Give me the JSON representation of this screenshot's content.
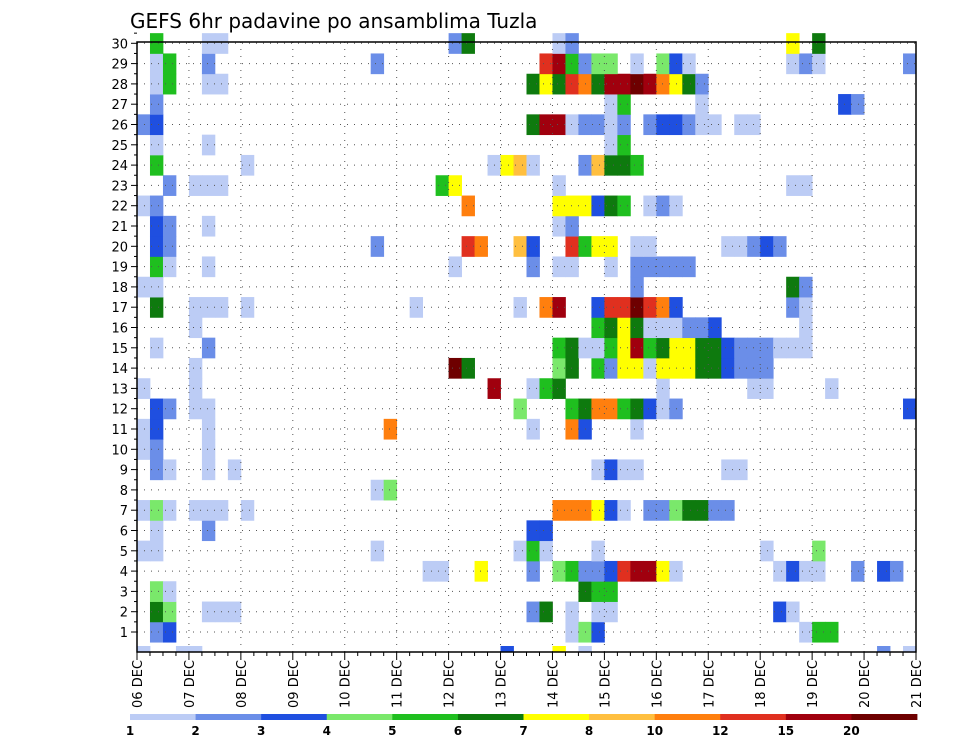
{
  "chart_data": {
    "type": "heatmap",
    "title": "GEFS 6hr padavine po ansamblima Tuzla",
    "xlabel": "",
    "ylabel": "",
    "x_tick_labels": [
      "06 DEC",
      "07 DEC",
      "08 DEC",
      "09 DEC",
      "10 DEC",
      "11 DEC",
      "12 DEC",
      "13 DEC",
      "14 DEC",
      "15 DEC",
      "16 DEC",
      "17 DEC",
      "18 DEC",
      "19 DEC",
      "20 DEC",
      "21 DEC"
    ],
    "y_tick_labels": [
      "1",
      "2",
      "3",
      "4",
      "5",
      "6",
      "7",
      "8",
      "9",
      "10",
      "11",
      "12",
      "13",
      "14",
      "15",
      "16",
      "17",
      "18",
      "19",
      "20",
      "21",
      "22",
      "23",
      "24",
      "25",
      "26",
      "27",
      "28",
      "29",
      "30"
    ],
    "x_range_steps": [
      0,
      60
    ],
    "step_hours": 6,
    "members": [
      1,
      30
    ],
    "grid": "dotted",
    "colorbar": {
      "labels": [
        "1",
        "2",
        "3",
        "4",
        "5",
        "6",
        "7",
        "8",
        "10",
        "12",
        "15",
        "20"
      ],
      "colors": [
        "#bcccf5",
        "#6b8ee8",
        "#1f4fe0",
        "#7ae86b",
        "#1fbf1f",
        "#0e7a0e",
        "#ffff00",
        "#ffbf3f",
        "#ff7f0e",
        "#e0301f",
        "#a0000e",
        "#6e0000"
      ]
    },
    "cells": [
      [
        1,
        1,
        1
      ],
      [
        1,
        2,
        2
      ],
      [
        1,
        33,
        0
      ],
      [
        1,
        34,
        3
      ],
      [
        1,
        35,
        2
      ],
      [
        1,
        51,
        0
      ],
      [
        1,
        52,
        4
      ],
      [
        1,
        53,
        4
      ],
      [
        2,
        1,
        5
      ],
      [
        2,
        2,
        3
      ],
      [
        2,
        5,
        0
      ],
      [
        2,
        6,
        0
      ],
      [
        2,
        7,
        0
      ],
      [
        2,
        30,
        1
      ],
      [
        2,
        31,
        5
      ],
      [
        2,
        33,
        0
      ],
      [
        2,
        35,
        0
      ],
      [
        2,
        36,
        0
      ],
      [
        2,
        49,
        2
      ],
      [
        2,
        50,
        0
      ],
      [
        3,
        1,
        3
      ],
      [
        3,
        2,
        0
      ],
      [
        3,
        34,
        5
      ],
      [
        3,
        35,
        4
      ],
      [
        3,
        36,
        4
      ],
      [
        4,
        22,
        0
      ],
      [
        4,
        23,
        0
      ],
      [
        4,
        26,
        6
      ],
      [
        4,
        30,
        1
      ],
      [
        4,
        32,
        3
      ],
      [
        4,
        33,
        4
      ],
      [
        4,
        34,
        1
      ],
      [
        4,
        35,
        1
      ],
      [
        4,
        36,
        2
      ],
      [
        4,
        37,
        9
      ],
      [
        4,
        38,
        10
      ],
      [
        4,
        39,
        10
      ],
      [
        4,
        40,
        6
      ],
      [
        4,
        41,
        0
      ],
      [
        4,
        49,
        0
      ],
      [
        4,
        50,
        2
      ],
      [
        4,
        51,
        0
      ],
      [
        4,
        52,
        0
      ],
      [
        4,
        55,
        1
      ],
      [
        4,
        57,
        2
      ],
      [
        4,
        58,
        1
      ],
      [
        5,
        0,
        0
      ],
      [
        5,
        1,
        0
      ],
      [
        5,
        18,
        0
      ],
      [
        5,
        29,
        0
      ],
      [
        5,
        30,
        4
      ],
      [
        5,
        31,
        0
      ],
      [
        5,
        35,
        0
      ],
      [
        5,
        48,
        0
      ],
      [
        5,
        52,
        3
      ],
      [
        6,
        1,
        0
      ],
      [
        6,
        5,
        1
      ],
      [
        6,
        30,
        2
      ],
      [
        6,
        31,
        2
      ],
      [
        7,
        0,
        0
      ],
      [
        7,
        1,
        3
      ],
      [
        7,
        2,
        0
      ],
      [
        7,
        4,
        0
      ],
      [
        7,
        5,
        0
      ],
      [
        7,
        6,
        0
      ],
      [
        7,
        8,
        0
      ],
      [
        7,
        32,
        8
      ],
      [
        7,
        33,
        8
      ],
      [
        7,
        34,
        8
      ],
      [
        7,
        35,
        6
      ],
      [
        7,
        36,
        2
      ],
      [
        7,
        37,
        0
      ],
      [
        7,
        39,
        1
      ],
      [
        7,
        40,
        1
      ],
      [
        7,
        41,
        3
      ],
      [
        7,
        42,
        5
      ],
      [
        7,
        43,
        5
      ],
      [
        7,
        44,
        1
      ],
      [
        7,
        45,
        1
      ],
      [
        8,
        18,
        0
      ],
      [
        8,
        19,
        3
      ],
      [
        9,
        1,
        1
      ],
      [
        9,
        2,
        0
      ],
      [
        9,
        5,
        0
      ],
      [
        9,
        7,
        0
      ],
      [
        9,
        35,
        0
      ],
      [
        9,
        36,
        2
      ],
      [
        9,
        37,
        0
      ],
      [
        9,
        38,
        0
      ],
      [
        9,
        45,
        0
      ],
      [
        9,
        46,
        0
      ],
      [
        10,
        0,
        0
      ],
      [
        10,
        1,
        1
      ],
      [
        10,
        5,
        0
      ],
      [
        11,
        0,
        0
      ],
      [
        11,
        1,
        2
      ],
      [
        11,
        5,
        0
      ],
      [
        11,
        19,
        8
      ],
      [
        11,
        30,
        0
      ],
      [
        11,
        33,
        8
      ],
      [
        11,
        34,
        2
      ],
      [
        11,
        38,
        0
      ],
      [
        12,
        1,
        2
      ],
      [
        12,
        2,
        1
      ],
      [
        12,
        4,
        0
      ],
      [
        12,
        5,
        0
      ],
      [
        12,
        29,
        3
      ],
      [
        12,
        33,
        4
      ],
      [
        12,
        34,
        5
      ],
      [
        12,
        35,
        8
      ],
      [
        12,
        36,
        8
      ],
      [
        12,
        37,
        4
      ],
      [
        12,
        38,
        5
      ],
      [
        12,
        39,
        2
      ],
      [
        12,
        40,
        0
      ],
      [
        12,
        41,
        1
      ],
      [
        12,
        59,
        2
      ],
      [
        13,
        0,
        0
      ],
      [
        13,
        4,
        0
      ],
      [
        13,
        27,
        10
      ],
      [
        13,
        30,
        0
      ],
      [
        13,
        31,
        4
      ],
      [
        13,
        32,
        5
      ],
      [
        13,
        40,
        0
      ],
      [
        13,
        47,
        0
      ],
      [
        13,
        48,
        0
      ],
      [
        13,
        53,
        0
      ],
      [
        14,
        4,
        0
      ],
      [
        14,
        24,
        11
      ],
      [
        14,
        25,
        5
      ],
      [
        14,
        32,
        3
      ],
      [
        14,
        33,
        5
      ],
      [
        14,
        35,
        4
      ],
      [
        14,
        36,
        1
      ],
      [
        14,
        37,
        6
      ],
      [
        14,
        38,
        6
      ],
      [
        14,
        39,
        0
      ],
      [
        14,
        40,
        6
      ],
      [
        14,
        41,
        6
      ],
      [
        14,
        42,
        6
      ],
      [
        14,
        43,
        5
      ],
      [
        14,
        44,
        5
      ],
      [
        14,
        45,
        2
      ],
      [
        14,
        46,
        1
      ],
      [
        14,
        47,
        1
      ],
      [
        14,
        48,
        1
      ],
      [
        15,
        1,
        0
      ],
      [
        15,
        5,
        1
      ],
      [
        15,
        32,
        4
      ],
      [
        15,
        33,
        5
      ],
      [
        15,
        34,
        0
      ],
      [
        15,
        35,
        0
      ],
      [
        15,
        36,
        4
      ],
      [
        15,
        37,
        6
      ],
      [
        15,
        38,
        10
      ],
      [
        15,
        39,
        4
      ],
      [
        15,
        40,
        5
      ],
      [
        15,
        41,
        6
      ],
      [
        15,
        42,
        6
      ],
      [
        15,
        43,
        5
      ],
      [
        15,
        44,
        5
      ],
      [
        15,
        45,
        2
      ],
      [
        15,
        46,
        1
      ],
      [
        15,
        47,
        1
      ],
      [
        15,
        48,
        1
      ],
      [
        15,
        49,
        0
      ],
      [
        15,
        50,
        0
      ],
      [
        15,
        51,
        0
      ],
      [
        16,
        4,
        0
      ],
      [
        16,
        35,
        4
      ],
      [
        16,
        36,
        5
      ],
      [
        16,
        37,
        6
      ],
      [
        16,
        38,
        5
      ],
      [
        16,
        39,
        0
      ],
      [
        16,
        40,
        0
      ],
      [
        16,
        41,
        0
      ],
      [
        16,
        42,
        1
      ],
      [
        16,
        43,
        1
      ],
      [
        16,
        44,
        2
      ],
      [
        16,
        51,
        0
      ],
      [
        17,
        1,
        5
      ],
      [
        17,
        4,
        0
      ],
      [
        17,
        5,
        0
      ],
      [
        17,
        6,
        0
      ],
      [
        17,
        8,
        0
      ],
      [
        17,
        21,
        0
      ],
      [
        17,
        29,
        0
      ],
      [
        17,
        31,
        8
      ],
      [
        17,
        32,
        10
      ],
      [
        17,
        35,
        2
      ],
      [
        17,
        36,
        9
      ],
      [
        17,
        37,
        9
      ],
      [
        17,
        38,
        11
      ],
      [
        17,
        39,
        9
      ],
      [
        17,
        40,
        8
      ],
      [
        17,
        41,
        2
      ],
      [
        17,
        50,
        1
      ],
      [
        17,
        51,
        0
      ],
      [
        18,
        0,
        0
      ],
      [
        18,
        1,
        0
      ],
      [
        18,
        38,
        1
      ],
      [
        18,
        50,
        5
      ],
      [
        18,
        51,
        1
      ],
      [
        19,
        1,
        4
      ],
      [
        19,
        2,
        0
      ],
      [
        19,
        5,
        0
      ],
      [
        19,
        24,
        0
      ],
      [
        19,
        30,
        1
      ],
      [
        19,
        32,
        0
      ],
      [
        19,
        33,
        0
      ],
      [
        19,
        36,
        0
      ],
      [
        19,
        38,
        1
      ],
      [
        19,
        39,
        1
      ],
      [
        19,
        40,
        1
      ],
      [
        19,
        41,
        1
      ],
      [
        19,
        42,
        1
      ],
      [
        20,
        1,
        2
      ],
      [
        20,
        2,
        1
      ],
      [
        20,
        18,
        1
      ],
      [
        20,
        25,
        9
      ],
      [
        20,
        26,
        8
      ],
      [
        20,
        29,
        7
      ],
      [
        20,
        30,
        2
      ],
      [
        20,
        33,
        9
      ],
      [
        20,
        34,
        4
      ],
      [
        20,
        35,
        6
      ],
      [
        20,
        36,
        6
      ],
      [
        20,
        38,
        0
      ],
      [
        20,
        39,
        0
      ],
      [
        20,
        45,
        0
      ],
      [
        20,
        46,
        0
      ],
      [
        20,
        47,
        1
      ],
      [
        20,
        48,
        2
      ],
      [
        20,
        49,
        1
      ],
      [
        21,
        1,
        2
      ],
      [
        21,
        2,
        1
      ],
      [
        21,
        5,
        0
      ],
      [
        21,
        32,
        0
      ],
      [
        21,
        33,
        1
      ],
      [
        22,
        0,
        0
      ],
      [
        22,
        1,
        1
      ],
      [
        22,
        25,
        8
      ],
      [
        22,
        32,
        6
      ],
      [
        22,
        33,
        6
      ],
      [
        22,
        34,
        6
      ],
      [
        22,
        35,
        2
      ],
      [
        22,
        36,
        5
      ],
      [
        22,
        37,
        4
      ],
      [
        22,
        39,
        0
      ],
      [
        22,
        40,
        1
      ],
      [
        22,
        41,
        0
      ],
      [
        23,
        2,
        1
      ],
      [
        23,
        4,
        0
      ],
      [
        23,
        5,
        0
      ],
      [
        23,
        6,
        0
      ],
      [
        23,
        23,
        4
      ],
      [
        23,
        24,
        6
      ],
      [
        23,
        32,
        0
      ],
      [
        23,
        50,
        0
      ],
      [
        23,
        51,
        0
      ],
      [
        24,
        1,
        4
      ],
      [
        24,
        8,
        0
      ],
      [
        24,
        27,
        0
      ],
      [
        24,
        28,
        6
      ],
      [
        24,
        29,
        7
      ],
      [
        24,
        30,
        0
      ],
      [
        24,
        34,
        1
      ],
      [
        24,
        35,
        7
      ],
      [
        24,
        36,
        5
      ],
      [
        24,
        37,
        5
      ],
      [
        24,
        38,
        4
      ],
      [
        25,
        1,
        0
      ],
      [
        25,
        5,
        0
      ],
      [
        25,
        36,
        0
      ],
      [
        25,
        37,
        4
      ],
      [
        26,
        0,
        1
      ],
      [
        26,
        1,
        2
      ],
      [
        26,
        30,
        5
      ],
      [
        26,
        31,
        10
      ],
      [
        26,
        32,
        10
      ],
      [
        26,
        33,
        0
      ],
      [
        26,
        34,
        1
      ],
      [
        26,
        35,
        1
      ],
      [
        26,
        36,
        0
      ],
      [
        26,
        37,
        1
      ],
      [
        26,
        39,
        1
      ],
      [
        26,
        40,
        2
      ],
      [
        26,
        41,
        2
      ],
      [
        26,
        42,
        1
      ],
      [
        26,
        43,
        0
      ],
      [
        26,
        44,
        0
      ],
      [
        26,
        46,
        0
      ],
      [
        26,
        47,
        0
      ],
      [
        27,
        1,
        1
      ],
      [
        27,
        36,
        0
      ],
      [
        27,
        37,
        4
      ],
      [
        27,
        43,
        0
      ],
      [
        27,
        54,
        2
      ],
      [
        27,
        55,
        1
      ],
      [
        28,
        1,
        0
      ],
      [
        28,
        2,
        4
      ],
      [
        28,
        5,
        0
      ],
      [
        28,
        6,
        0
      ],
      [
        28,
        30,
        5
      ],
      [
        28,
        31,
        6
      ],
      [
        28,
        32,
        5
      ],
      [
        28,
        33,
        9
      ],
      [
        28,
        34,
        8
      ],
      [
        28,
        35,
        5
      ],
      [
        28,
        36,
        10
      ],
      [
        28,
        37,
        10
      ],
      [
        28,
        38,
        11
      ],
      [
        28,
        39,
        10
      ],
      [
        28,
        40,
        8
      ],
      [
        28,
        41,
        6
      ],
      [
        28,
        42,
        5
      ],
      [
        28,
        43,
        1
      ],
      [
        29,
        1,
        0
      ],
      [
        29,
        2,
        4
      ],
      [
        29,
        5,
        1
      ],
      [
        29,
        18,
        1
      ],
      [
        29,
        31,
        9
      ],
      [
        29,
        32,
        10
      ],
      [
        29,
        33,
        4
      ],
      [
        29,
        34,
        1
      ],
      [
        29,
        35,
        3
      ],
      [
        29,
        36,
        3
      ],
      [
        29,
        38,
        0
      ],
      [
        29,
        40,
        3
      ],
      [
        29,
        41,
        2
      ],
      [
        29,
        42,
        0
      ],
      [
        29,
        50,
        0
      ],
      [
        29,
        51,
        1
      ],
      [
        29,
        52,
        0
      ],
      [
        29,
        59,
        1
      ],
      [
        30,
        1,
        4
      ],
      [
        30,
        5,
        0
      ],
      [
        30,
        6,
        0
      ],
      [
        30,
        24,
        1
      ],
      [
        30,
        25,
        5
      ],
      [
        30,
        32,
        0
      ],
      [
        30,
        33,
        1
      ],
      [
        30,
        50,
        6
      ],
      [
        30,
        52,
        5
      ],
      [
        0,
        0,
        0
      ],
      [
        0,
        3,
        0
      ],
      [
        0,
        4,
        0
      ],
      [
        0,
        28,
        2
      ],
      [
        0,
        32,
        6
      ],
      [
        0,
        34,
        0
      ],
      [
        0,
        57,
        1
      ],
      [
        0,
        59,
        0
      ]
    ]
  }
}
